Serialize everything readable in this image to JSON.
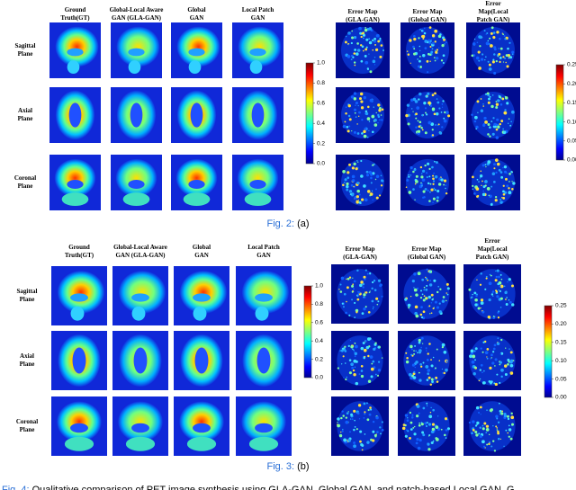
{
  "figures": [
    {
      "column_headers": [
        [
          "Ground",
          "Truth(GT)"
        ],
        [
          "Global-Local Aware",
          "GAN (GLA-GAN)"
        ],
        [
          "Global",
          "GAN"
        ],
        [
          "Local Patch",
          "GAN"
        ]
      ],
      "row_labels": [
        [
          "Sagittal",
          "Plane"
        ],
        [
          "Axial",
          "Plane"
        ],
        [
          "Coronal",
          "Plane"
        ]
      ],
      "colorbar_ticks": [
        "0.0",
        "0.2",
        "0.4",
        "0.6",
        "0.8",
        "1.0"
      ],
      "error_headers": [
        [
          "Error Map",
          "(GLA-GAN)"
        ],
        [
          "Error Map",
          "(Global GAN)"
        ],
        [
          "Error",
          "Map(Local",
          "Patch GAN)"
        ]
      ],
      "error_colorbar_ticks": [
        "0.00",
        "0.05",
        "0.10",
        "0.15",
        "0.20",
        "0.25"
      ],
      "caption": {
        "label": "Fig. 2:",
        "text": "(a)"
      }
    },
    {
      "column_headers": [
        [
          "Ground",
          "Truth(GT)"
        ],
        [
          "Global-Local Aware",
          "GAN (GLA-GAN)"
        ],
        [
          "Global",
          "GAN"
        ],
        [
          "Local Patch",
          "GAN"
        ]
      ],
      "row_labels": [
        [
          "Sagittal",
          "Plane"
        ],
        [
          "Axial",
          "Plane"
        ],
        [
          "Coronal",
          "Plane"
        ]
      ],
      "colorbar_ticks": [
        "0.0",
        "0.2",
        "0.4",
        "0.6",
        "0.8",
        "1.0"
      ],
      "error_headers": [
        [
          "Error Map",
          "(GLA-GAN)"
        ],
        [
          "Error Map",
          "(Global GAN)"
        ],
        [
          "Error",
          "Map(Local",
          "Patch GAN)"
        ]
      ],
      "error_colorbar_ticks": [
        "0.00",
        "0.05",
        "0.10",
        "0.15",
        "0.20",
        "0.25"
      ],
      "caption": {
        "label": "Fig. 3:",
        "text": "(b)"
      }
    }
  ],
  "footer": {
    "label": "Fig. 4:",
    "text": "Qualitative comparison of PET image synthesis using GLA-GAN, Global GAN, and patch-based Local GAN. G"
  }
}
